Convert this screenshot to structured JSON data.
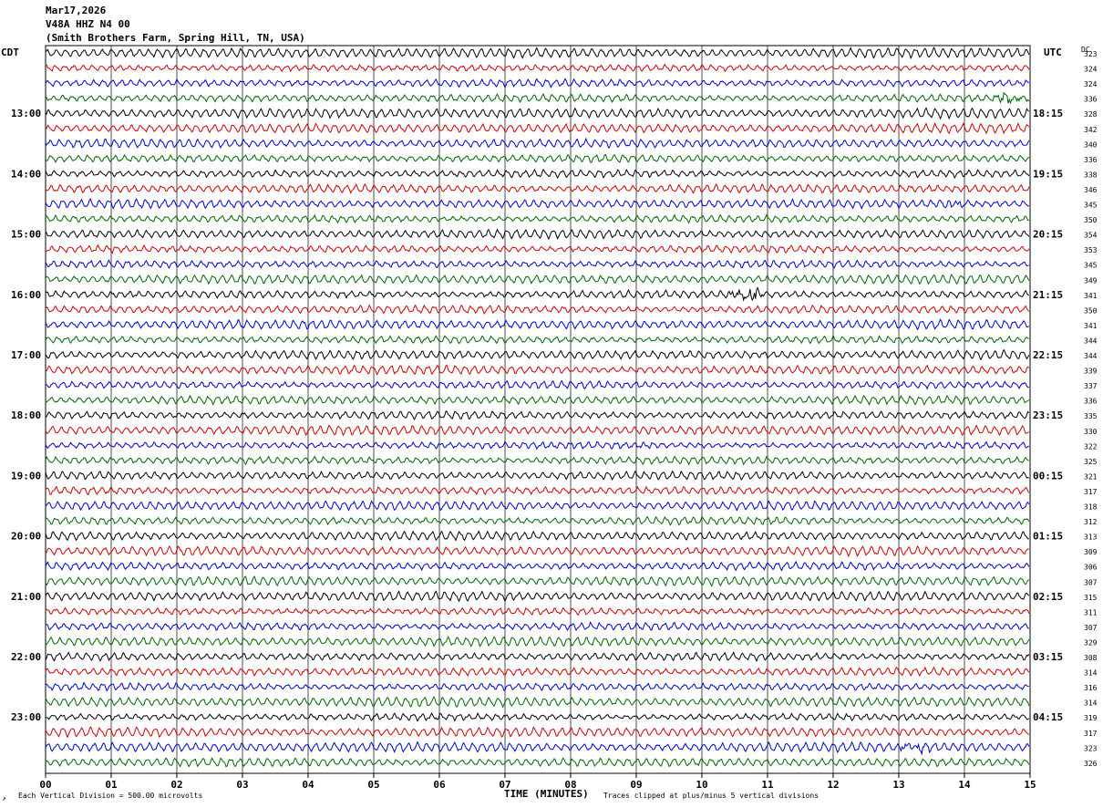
{
  "header": {
    "date": "Mar17,2026",
    "station": "V48A HHZ N4 00",
    "location": "(Smith Brothers Farm, Spring Hill, TN, USA)"
  },
  "left_tz": "CDT",
  "right_tz": "UTC",
  "dc_label": "DC",
  "footer": {
    "scale": "Each Vertical Division =  500.00 microvolts",
    "xlabel": "TIME (MINUTES)",
    "clip": "Traces clipped at plus/minus 5 vertical divisions",
    "corner_mark": "↗"
  },
  "chart_data": {
    "type": "line",
    "trace_colors": [
      "#000000",
      "#cc0000",
      "#0000cc",
      "#006600"
    ],
    "xlim": [
      0,
      15
    ],
    "x_ticks": [
      "00",
      "01",
      "02",
      "03",
      "04",
      "05",
      "06",
      "07",
      "08",
      "09",
      "10",
      "11",
      "12",
      "13",
      "14",
      "15"
    ],
    "left_hour_labels": [
      "13:00",
      "14:00",
      "15:00",
      "16:00",
      "17:00",
      "18:00",
      "19:00",
      "20:00",
      "21:00",
      "22:00",
      "23:00"
    ],
    "right_hour_labels": [
      "18:15",
      "19:15",
      "20:15",
      "21:15",
      "22:15",
      "23:15",
      "00:15",
      "01:15",
      "02:15",
      "03:15",
      "04:15"
    ],
    "dc_values": [
      "323",
      "324",
      "324",
      "336",
      "328",
      "342",
      "340",
      "336",
      "338",
      "346",
      "345",
      "350",
      "354",
      "353",
      "345",
      "349",
      "341",
      "350",
      "341",
      "344",
      "344",
      "339",
      "337",
      "336",
      "335",
      "330",
      "322",
      "325",
      "321",
      "317",
      "318",
      "312",
      "313",
      "309",
      "306",
      "307",
      "315",
      "311",
      "307",
      "329",
      "308",
      "314",
      "316",
      "314",
      "319",
      "317",
      "323",
      "326"
    ],
    "bursts": [
      {
        "trace": 3,
        "minute": 14.7
      },
      {
        "trace": 10,
        "minute": 13.8
      },
      {
        "trace": 16,
        "minute": 10.7
      },
      {
        "trace": 46,
        "minute": 13.2
      }
    ]
  }
}
